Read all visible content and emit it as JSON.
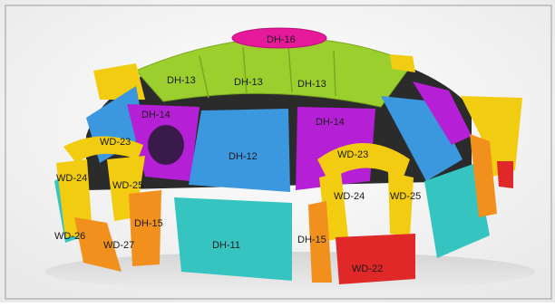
{
  "image": {
    "description_labels": [
      {
        "id": "dh16",
        "text": "DH-16"
      },
      {
        "id": "dh13a",
        "text": "DH-13"
      },
      {
        "id": "dh13b",
        "text": "DH-13"
      },
      {
        "id": "dh13c",
        "text": "DH-13"
      },
      {
        "id": "dh14a",
        "text": "DH-14"
      },
      {
        "id": "dh14b",
        "text": "DH-14"
      },
      {
        "id": "dh12",
        "text": "DH-12"
      },
      {
        "id": "dh11",
        "text": "DH-11"
      },
      {
        "id": "dh15a",
        "text": "DH-15"
      },
      {
        "id": "dh15b",
        "text": "DH-15"
      },
      {
        "id": "wd23a",
        "text": "WD-23"
      },
      {
        "id": "wd23b",
        "text": "WD-23"
      },
      {
        "id": "wd24a",
        "text": "WD-24"
      },
      {
        "id": "wd24b",
        "text": "WD-24"
      },
      {
        "id": "wd25a",
        "text": "WD-25"
      },
      {
        "id": "wd25b",
        "text": "WD-25"
      },
      {
        "id": "wd26",
        "text": "WD-26"
      },
      {
        "id": "wd27",
        "text": "WD-27"
      },
      {
        "id": "wd22",
        "text": "WD-22"
      }
    ],
    "colors": {
      "cap": "#e6199a",
      "top_ring": "#9bcf2d",
      "mid_ring": "#b51fd6",
      "blue_panel": "#3b97de",
      "lower_ring": "#35c4c0",
      "door_arch": "#f2cc10",
      "door_side": "#f2901e",
      "door_base": "#e02828"
    }
  }
}
